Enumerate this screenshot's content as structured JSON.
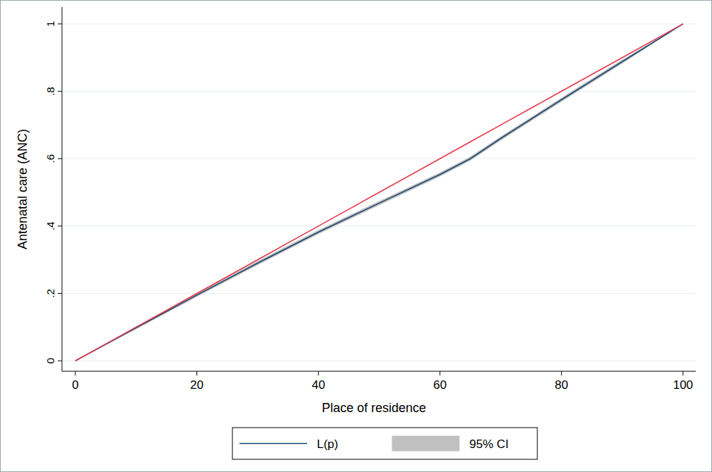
{
  "chart_data": {
    "type": "line",
    "x_label": "Place of residence",
    "y_label": "Antenatal care (ANC)",
    "x": [
      0,
      10,
      20,
      30,
      40,
      50,
      60,
      65,
      70,
      80,
      90,
      100
    ],
    "series": [
      {
        "name": "L(p)",
        "color": "#1a476f",
        "type": "line",
        "values": [
          0,
          0.098,
          0.195,
          0.29,
          0.382,
          0.468,
          0.553,
          0.6,
          0.66,
          0.775,
          0.888,
          1
        ]
      },
      {
        "name": "95% CI",
        "color": "#c0c0c0",
        "type": "area",
        "lower": [
          0,
          0.094,
          0.19,
          0.284,
          0.376,
          0.462,
          0.547,
          0.594,
          0.654,
          0.769,
          0.882,
          1
        ],
        "upper": [
          0,
          0.102,
          0.2,
          0.296,
          0.388,
          0.474,
          0.559,
          0.606,
          0.666,
          0.781,
          0.894,
          1
        ]
      },
      {
        "color": "#e8374a",
        "type": "line",
        "values": [
          0,
          0.1,
          0.2,
          0.3,
          0.4,
          0.5,
          0.6,
          0.65,
          0.7,
          0.8,
          0.9,
          1
        ]
      }
    ],
    "xlim": [
      -2.2,
      102.1
    ],
    "ylim": [
      -0.031,
      1.05
    ],
    "xticks": [
      0,
      20,
      40,
      60,
      80,
      100
    ],
    "yticks": [
      0,
      {
        "value": 0.2,
        "label": ".2"
      },
      {
        "value": 0.4,
        "label": ".4"
      },
      {
        "value": 0.6,
        "label": ".6"
      },
      {
        "value": 0.8,
        "label": ".8"
      },
      1
    ],
    "grid": true,
    "legend": "bottom"
  }
}
